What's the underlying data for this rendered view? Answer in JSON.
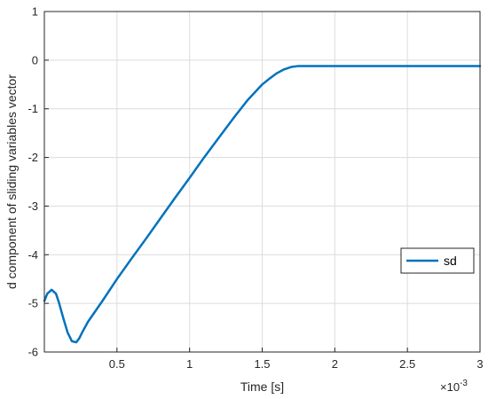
{
  "chart_data": {
    "type": "line",
    "title": "",
    "xlabel": "Time [s]",
    "ylabel": "d component of sliding variables vector",
    "x_exponent_base": "×10",
    "x_exponent_power": "-3",
    "xlim": [
      0,
      3
    ],
    "ylim": [
      -6,
      1
    ],
    "xticks": [
      0.5,
      1,
      1.5,
      2,
      2.5,
      3
    ],
    "xtick_labels": [
      "0.5",
      "1",
      "1.5",
      "2",
      "2.5",
      "3"
    ],
    "yticks": [
      -6,
      -5,
      -4,
      -3,
      -2,
      -1,
      0,
      1
    ],
    "ytick_labels": [
      "-6",
      "-5",
      "-4",
      "-3",
      "-2",
      "-1",
      "0",
      "1"
    ],
    "grid": true,
    "legend_position": "right",
    "series": [
      {
        "name": "sd",
        "color": "#0072bd",
        "x": [
          0,
          0.02,
          0.05,
          0.08,
          0.1,
          0.13,
          0.16,
          0.19,
          0.22,
          0.24,
          0.26,
          0.3,
          0.4,
          0.5,
          0.6,
          0.7,
          0.8,
          0.9,
          1.0,
          1.1,
          1.2,
          1.3,
          1.4,
          1.5,
          1.55,
          1.6,
          1.65,
          1.7,
          1.75,
          1.8,
          1.9,
          2.0,
          2.2,
          2.4,
          2.6,
          2.8,
          3.0
        ],
        "y": [
          -4.95,
          -4.8,
          -4.72,
          -4.8,
          -4.98,
          -5.3,
          -5.6,
          -5.78,
          -5.8,
          -5.72,
          -5.6,
          -5.38,
          -4.95,
          -4.5,
          -4.08,
          -3.67,
          -3.25,
          -2.83,
          -2.42,
          -2.0,
          -1.6,
          -1.2,
          -0.82,
          -0.5,
          -0.38,
          -0.27,
          -0.19,
          -0.14,
          -0.12,
          -0.12,
          -0.12,
          -0.12,
          -0.12,
          -0.12,
          -0.12,
          -0.12,
          -0.12
        ]
      }
    ]
  }
}
